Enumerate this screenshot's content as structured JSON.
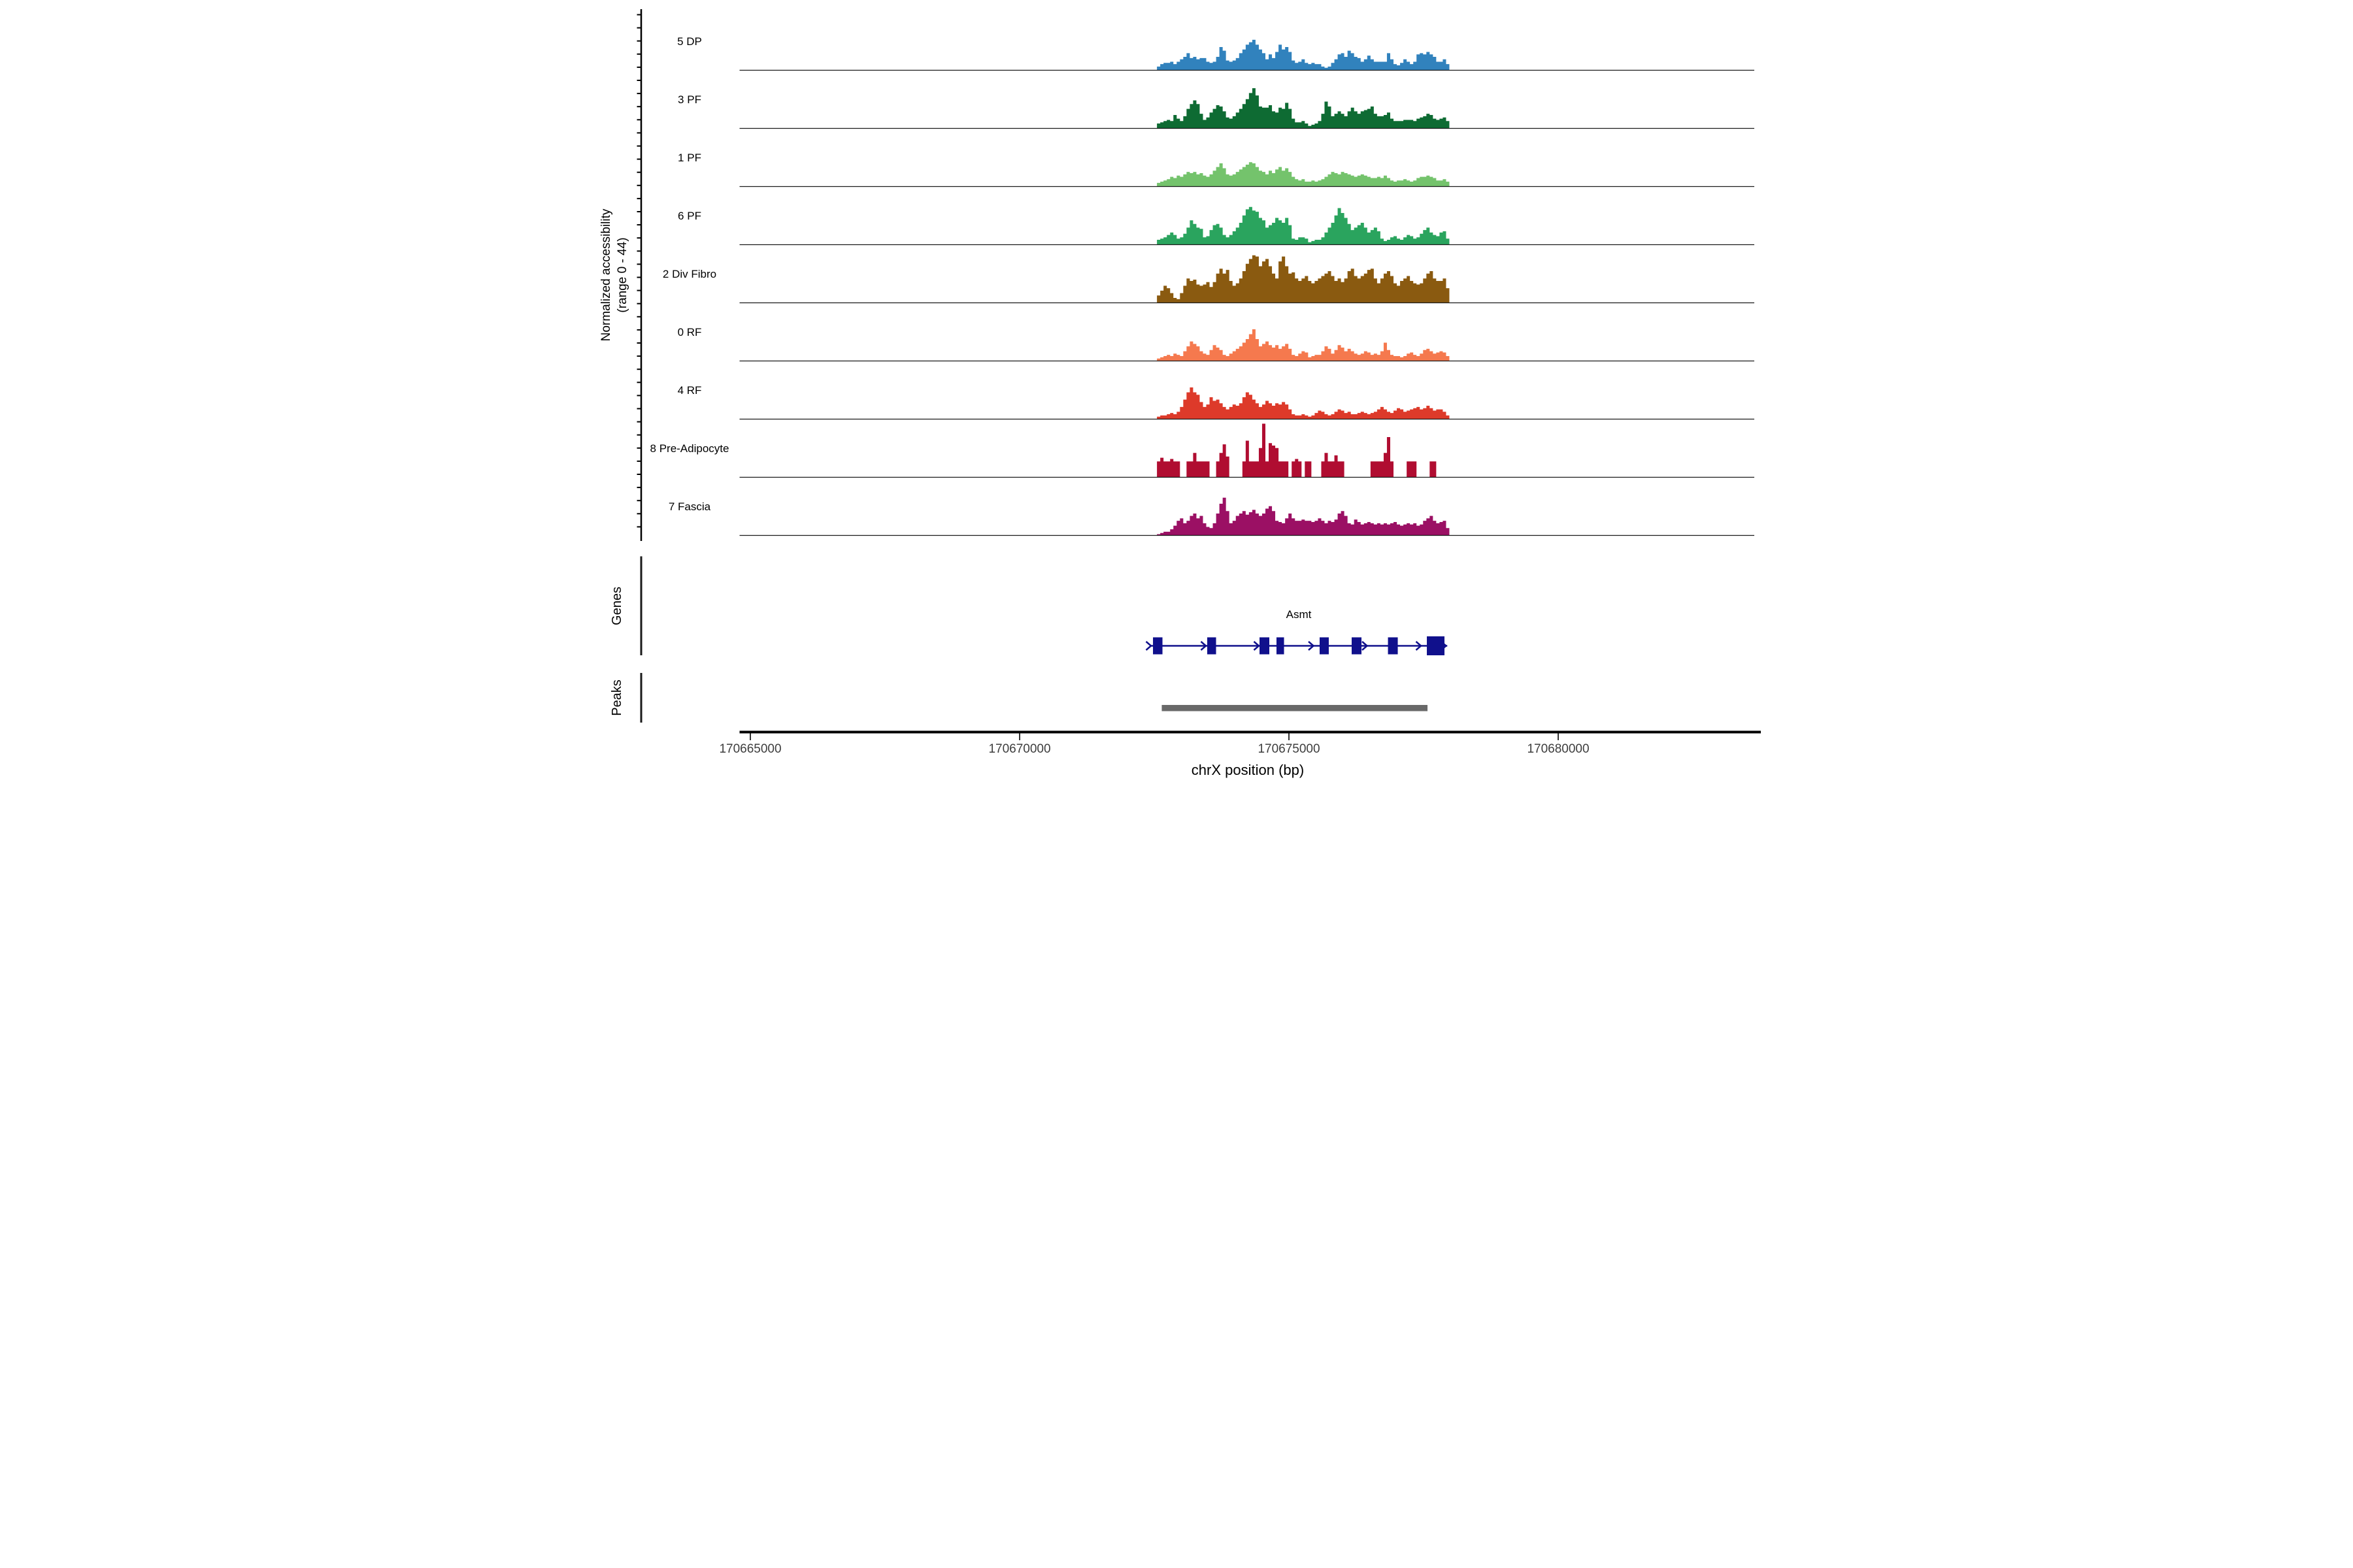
{
  "figure": {
    "yaxis_label_line1": "Normalized accessibility",
    "yaxis_label_line2": "(range 0 - 44)",
    "genes_section_label": "Genes",
    "peaks_section_label": "Peaks",
    "xaxis_label": "chrX position (bp)",
    "colors": {
      "background": "#ffffff",
      "axis": "#000000",
      "tick_label": "#3d3d3d",
      "track_baseline": "#1a1a1a",
      "gene_model": "#10108c",
      "peak_bar": "#696969"
    }
  },
  "chart_data": {
    "type": "area",
    "title": "",
    "xlabel": "chrX position (bp)",
    "ylabel": "Normalized accessibility (range 0 - 44)",
    "ylim": [
      0,
      44
    ],
    "xlim_bp": [
      170664800,
      170683640
    ],
    "x_ticks_bp": [
      170665000,
      170670000,
      170675000,
      170680000
    ],
    "x_tick_labels": [
      "170665000",
      "170670000",
      "170675000",
      "170680000"
    ],
    "grid": "off",
    "legend": "none",
    "signal_bp_start": 170672550,
    "signal_bp_step": 61,
    "n_points": 90,
    "series": [
      {
        "name": "5 DP",
        "color": "#3182bd",
        "values": [
          3,
          5,
          6,
          6,
          7,
          5,
          7,
          9,
          11,
          14,
          10,
          11,
          9,
          10,
          10,
          7,
          6,
          7,
          11,
          19,
          16,
          8,
          7,
          8,
          10,
          14,
          17,
          21,
          23,
          25,
          21,
          17,
          14,
          9,
          13,
          10,
          15,
          21,
          17,
          19,
          15,
          8,
          6,
          7,
          9,
          6,
          5,
          6,
          5,
          5,
          3,
          2,
          3,
          6,
          9,
          13,
          14,
          11,
          16,
          14,
          11,
          10,
          7,
          9,
          12,
          9,
          7,
          7,
          7,
          7,
          14,
          9,
          5,
          4,
          6,
          9,
          7,
          5,
          7,
          13,
          14,
          13,
          15,
          13,
          11,
          7,
          7,
          9,
          5,
          0
        ]
      },
      {
        "name": "3 PF",
        "color": "#0e6b33",
        "values": [
          4,
          5,
          6,
          7,
          6,
          11,
          8,
          6,
          10,
          16,
          20,
          23,
          20,
          12,
          7,
          9,
          13,
          16,
          19,
          18,
          14,
          9,
          8,
          10,
          13,
          16,
          20,
          24,
          29,
          33,
          27,
          18,
          17,
          17,
          19,
          14,
          13,
          17,
          16,
          21,
          16,
          8,
          5,
          5,
          6,
          4,
          2,
          3,
          4,
          6,
          12,
          22,
          18,
          10,
          12,
          14,
          12,
          10,
          14,
          17,
          14,
          12,
          14,
          15,
          16,
          18,
          12,
          10,
          10,
          11,
          13,
          8,
          6,
          6,
          6,
          7,
          7,
          7,
          6,
          8,
          9,
          10,
          12,
          11,
          8,
          7,
          8,
          9,
          6,
          0
        ]
      },
      {
        "name": "1 PF",
        "color": "#74c36c",
        "values": [
          3,
          4,
          5,
          6,
          8,
          7,
          9,
          8,
          10,
          12,
          11,
          12,
          10,
          11,
          9,
          8,
          10,
          13,
          16,
          19,
          15,
          10,
          9,
          10,
          12,
          14,
          16,
          18,
          20,
          19,
          16,
          13,
          12,
          10,
          13,
          11,
          14,
          16,
          13,
          15,
          12,
          8,
          6,
          5,
          6,
          4,
          4,
          5,
          4,
          5,
          6,
          8,
          10,
          12,
          11,
          10,
          12,
          11,
          10,
          9,
          8,
          9,
          10,
          9,
          8,
          7,
          7,
          8,
          7,
          9,
          7,
          5,
          4,
          5,
          5,
          6,
          5,
          4,
          5,
          7,
          8,
          8,
          9,
          8,
          7,
          5,
          5,
          6,
          4,
          0
        ]
      },
      {
        "name": "6 PF",
        "color": "#2aa45e",
        "values": [
          4,
          5,
          6,
          8,
          10,
          8,
          5,
          6,
          9,
          14,
          20,
          17,
          14,
          13,
          6,
          7,
          12,
          16,
          17,
          14,
          8,
          6,
          8,
          11,
          14,
          18,
          24,
          29,
          31,
          28,
          27,
          22,
          20,
          14,
          16,
          18,
          22,
          20,
          18,
          22,
          16,
          5,
          4,
          6,
          6,
          5,
          2,
          3,
          4,
          4,
          6,
          10,
          14,
          18,
          24,
          30,
          26,
          22,
          17,
          12,
          14,
          16,
          18,
          14,
          10,
          12,
          14,
          11,
          5,
          3,
          4,
          6,
          7,
          5,
          4,
          6,
          8,
          7,
          5,
          6,
          9,
          12,
          14,
          10,
          8,
          7,
          10,
          11,
          5,
          0
        ]
      },
      {
        "name": "2 Div Fibro",
        "color": "#8a5a10",
        "values": [
          6,
          10,
          14,
          12,
          8,
          4,
          3,
          8,
          14,
          20,
          18,
          19,
          15,
          14,
          15,
          17,
          13,
          17,
          24,
          28,
          24,
          27,
          18,
          14,
          16,
          20,
          26,
          32,
          36,
          39,
          38,
          30,
          34,
          36,
          30,
          24,
          20,
          34,
          38,
          30,
          24,
          25,
          20,
          18,
          20,
          22,
          18,
          16,
          18,
          20,
          22,
          24,
          26,
          22,
          18,
          20,
          17,
          20,
          26,
          28,
          22,
          20,
          22,
          24,
          27,
          28,
          20,
          16,
          20,
          24,
          26,
          22,
          16,
          14,
          18,
          20,
          22,
          18,
          16,
          15,
          16,
          20,
          24,
          26,
          20,
          18,
          18,
          20,
          12,
          0
        ]
      },
      {
        "name": "0 RF",
        "color": "#f5794e",
        "values": [
          2,
          3,
          4,
          5,
          4,
          6,
          5,
          4,
          8,
          12,
          16,
          14,
          12,
          8,
          6,
          5,
          9,
          13,
          11,
          9,
          5,
          4,
          6,
          8,
          10,
          12,
          15,
          18,
          22,
          26,
          18,
          12,
          14,
          16,
          13,
          11,
          13,
          10,
          12,
          14,
          10,
          5,
          4,
          6,
          8,
          7,
          3,
          4,
          5,
          5,
          8,
          12,
          10,
          6,
          9,
          13,
          11,
          8,
          10,
          8,
          6,
          5,
          6,
          8,
          7,
          5,
          6,
          5,
          8,
          15,
          9,
          5,
          4,
          4,
          3,
          4,
          6,
          7,
          5,
          4,
          6,
          9,
          10,
          8,
          6,
          7,
          8,
          7,
          4,
          0
        ]
      },
      {
        "name": "4 RF",
        "color": "#dd3a2a",
        "values": [
          2,
          3,
          3,
          4,
          5,
          4,
          6,
          10,
          16,
          22,
          26,
          22,
          20,
          14,
          10,
          12,
          18,
          15,
          16,
          13,
          10,
          8,
          10,
          12,
          11,
          13,
          18,
          22,
          20,
          16,
          13,
          10,
          12,
          15,
          13,
          11,
          13,
          12,
          14,
          12,
          8,
          4,
          3,
          3,
          4,
          3,
          2,
          3,
          5,
          7,
          6,
          4,
          3,
          4,
          6,
          8,
          7,
          5,
          6,
          4,
          4,
          5,
          6,
          5,
          4,
          5,
          6,
          8,
          10,
          8,
          6,
          5,
          7,
          9,
          8,
          6,
          7,
          8,
          9,
          10,
          8,
          9,
          11,
          9,
          7,
          8,
          8,
          6,
          3,
          0
        ]
      },
      {
        "name": "8 Pre-Adipocyte",
        "color": "#b00d31",
        "values": [
          13,
          16,
          13,
          13,
          15,
          13,
          13,
          0,
          0,
          13,
          13,
          20,
          13,
          13,
          13,
          13,
          0,
          0,
          13,
          20,
          27,
          17,
          0,
          0,
          0,
          0,
          13,
          30,
          13,
          13,
          13,
          24,
          44,
          13,
          28,
          26,
          24,
          13,
          13,
          13,
          0,
          13,
          15,
          13,
          0,
          13,
          13,
          0,
          0,
          0,
          13,
          20,
          13,
          13,
          18,
          13,
          13,
          0,
          0,
          0,
          0,
          0,
          0,
          0,
          0,
          13,
          13,
          13,
          13,
          20,
          33,
          13,
          0,
          0,
          0,
          0,
          13,
          13,
          13,
          0,
          0,
          0,
          0,
          13,
          13,
          0,
          0,
          0,
          0,
          0
        ]
      },
      {
        "name": "7 Fascia",
        "color": "#9b1064",
        "values": [
          1,
          2,
          3,
          3,
          5,
          8,
          12,
          14,
          10,
          12,
          16,
          18,
          14,
          16,
          10,
          7,
          6,
          10,
          18,
          26,
          31,
          20,
          10,
          12,
          16,
          18,
          20,
          17,
          19,
          21,
          18,
          16,
          18,
          22,
          24,
          20,
          12,
          11,
          10,
          14,
          18,
          14,
          12,
          12,
          13,
          12,
          12,
          11,
          12,
          14,
          12,
          10,
          12,
          11,
          13,
          18,
          20,
          16,
          10,
          9,
          13,
          11,
          9,
          10,
          11,
          10,
          9,
          10,
          9,
          10,
          9,
          10,
          11,
          9,
          8,
          9,
          10,
          9,
          10,
          8,
          9,
          12,
          14,
          16,
          12,
          10,
          11,
          12,
          6,
          0
        ]
      }
    ],
    "gene": {
      "name": "Asmt",
      "strand": "+",
      "start_bp": 170672420,
      "end_bp": 170677940,
      "exons_bp": [
        [
          170672476,
          170672652
        ],
        [
          170673483,
          170673647
        ],
        [
          170674454,
          170674636
        ],
        [
          170674769,
          170674909
        ],
        [
          170675570,
          170675740
        ],
        [
          170676165,
          170676347
        ],
        [
          170676839,
          170677021
        ],
        [
          170677561,
          170677888
        ]
      ],
      "arrow_positions_bp": [
        170672427,
        170673446,
        170674429,
        170675443,
        170676438,
        170677439,
        170677905
      ]
    },
    "peaks": [
      {
        "start_bp": 170672639,
        "end_bp": 170677573
      }
    ]
  }
}
